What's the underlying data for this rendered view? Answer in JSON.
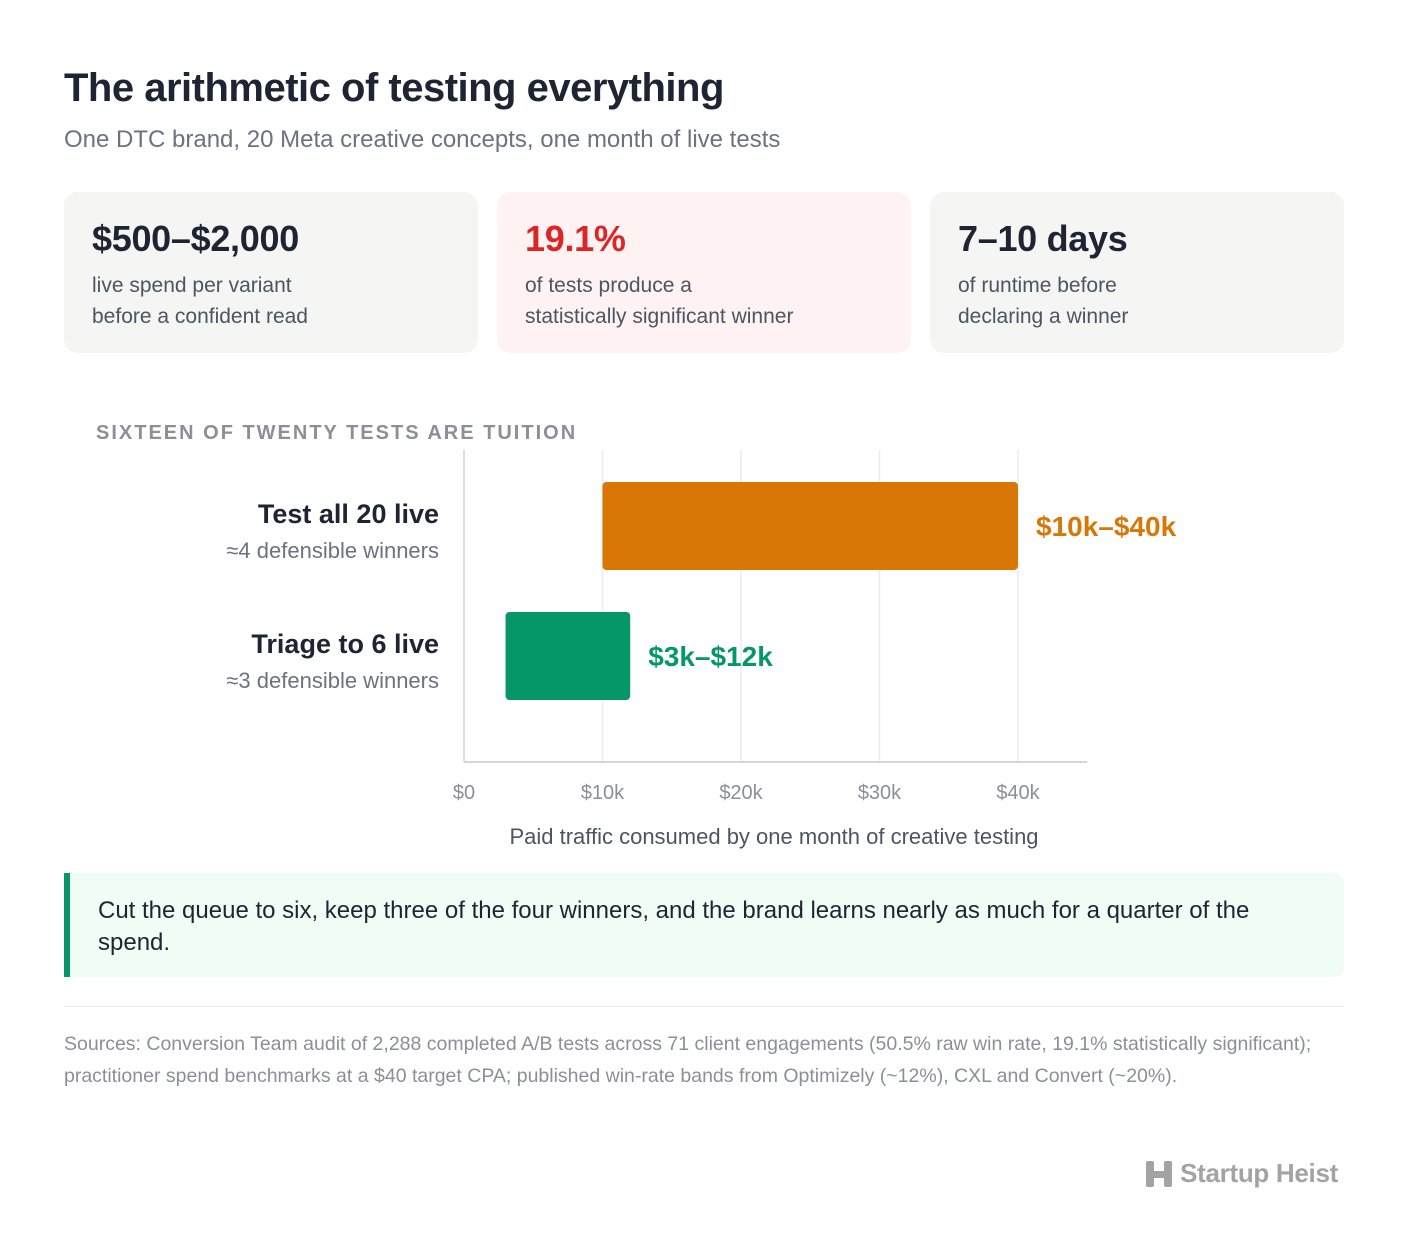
{
  "header": {
    "title": "The arithmetic of testing everything",
    "subtitle": "One DTC brand, 20 Meta creative concepts, one month of live tests"
  },
  "cards": [
    {
      "value": "$500–$2,000",
      "line1": "live spend per variant",
      "line2": "before a confident read"
    },
    {
      "value": "19.1%",
      "line1": "of tests produce a",
      "line2": "statistically significant winner",
      "accent": "#dc2626"
    },
    {
      "value": "7–10 days",
      "line1": "of runtime before",
      "line2": "declaring a winner"
    }
  ],
  "chart_heading": "SIXTEEN OF TWENTY TESTS ARE TUITION",
  "chart_data": {
    "type": "bar",
    "orientation": "horizontal",
    "title": "SIXTEEN OF TWENTY TESTS ARE TUITION",
    "xlabel": "Paid traffic consumed by one month of creative testing",
    "xlim": [
      0,
      45000
    ],
    "x_ticks": [
      0,
      10000,
      20000,
      30000,
      40000
    ],
    "x_tick_labels": [
      "$0",
      "$10k",
      "$20k",
      "$30k",
      "$40k"
    ],
    "grid": "vertical",
    "bars": [
      {
        "label": "Test all 20 live",
        "sublabel": "≈4 defensible winners",
        "low": 10000,
        "high": 40000,
        "value_label": "$10k–$40k",
        "color": "#d97706"
      },
      {
        "label": "Triage to 6 live",
        "sublabel": "≈3 defensible winners",
        "low": 3000,
        "high": 12000,
        "value_label": "$3k–$12k",
        "color": "#059669"
      }
    ]
  },
  "callout": "Cut the queue to six, keep three of the four winners, and the brand learns nearly as much for a quarter of the spend.",
  "sources": "Sources: Conversion Team audit of 2,288 completed A/B tests across 71 client engagements (50.5% raw win rate, 19.1% statistically significant); practitioner spend benchmarks at a $40 target CPA; published win-rate bands from Optimizely (~12%), CXL and Convert (~20%).",
  "brand": {
    "name": "Startup Heist",
    "icon": "h-logo-icon"
  }
}
